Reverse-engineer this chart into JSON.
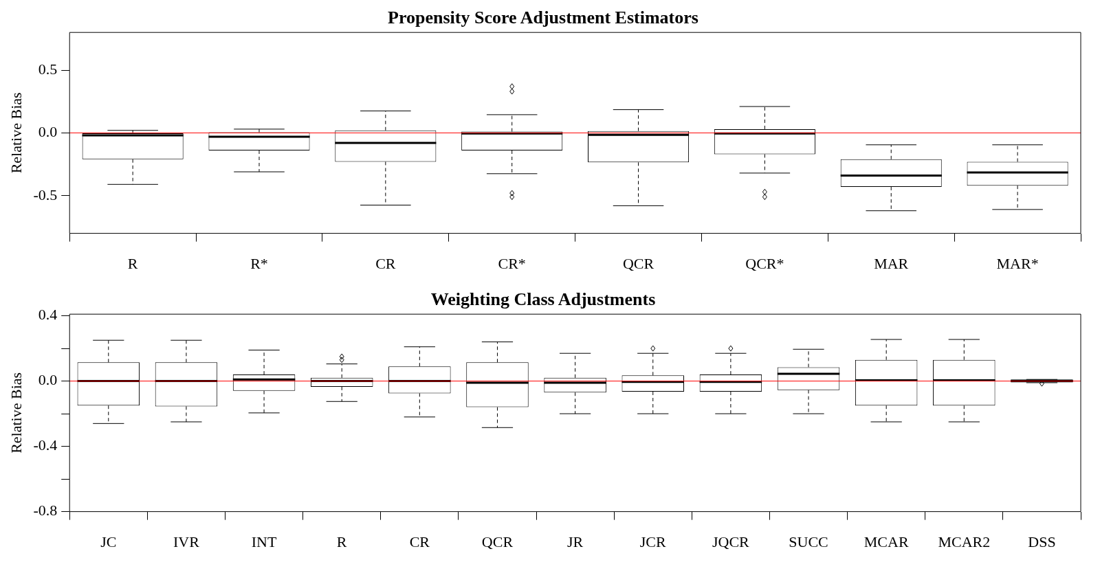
{
  "chart_data": [
    {
      "type": "box",
      "title": "Propensity Score Adjustment Estimators",
      "ylabel": "Relative Bias",
      "categories": [
        "R",
        "R*",
        "CR",
        "CR*",
        "QCR",
        "QCR*",
        "MAR",
        "MAR*"
      ],
      "boxes": [
        {
          "low": -0.41,
          "q1": -0.21,
          "median": -0.02,
          "q3": 0,
          "high": 0.02
        },
        {
          "low": -0.31,
          "q1": -0.14,
          "median": -0.03,
          "q3": 0.005,
          "high": 0.03
        },
        {
          "low": -0.575,
          "q1": -0.23,
          "median": -0.08,
          "q3": 0.02,
          "high": 0.175
        },
        {
          "low": -0.325,
          "q1": -0.14,
          "median": -0.005,
          "q3": 0.01,
          "high": 0.145,
          "outliers": [
            0.37,
            0.33,
            -0.48,
            -0.51
          ]
        },
        {
          "low": -0.58,
          "q1": -0.235,
          "median": -0.015,
          "q3": 0.015,
          "high": 0.185
        },
        {
          "low": -0.32,
          "q1": -0.17,
          "median": -0.005,
          "q3": 0.03,
          "high": 0.21,
          "outliers": [
            -0.47,
            -0.51
          ]
        },
        {
          "low": -0.62,
          "q1": -0.43,
          "median": -0.34,
          "q3": -0.21,
          "high": -0.095
        },
        {
          "low": -0.61,
          "q1": -0.42,
          "median": -0.315,
          "q3": -0.23,
          "high": -0.095
        }
      ],
      "ylim": [
        -0.8,
        0.8
      ],
      "yticks": [
        0.5,
        {
          "value": 0,
          "label": "0.0"
        },
        -0.5
      ],
      "ref_lines": [
        {
          "axis": "y",
          "value": 0,
          "color": "#ff0000"
        }
      ]
    },
    {
      "type": "box",
      "title": "Weighting Class Adjustments",
      "ylabel": "Relative Bias",
      "categories": [
        "JC",
        "IVR",
        "INT",
        "R",
        "CR",
        "QCR",
        "JR",
        "JCR",
        "JQCR",
        "SUCC",
        "MCAR",
        "MCAR2",
        "DSS"
      ],
      "boxes": [
        {
          "low": -0.26,
          "q1": -0.15,
          "median": 0,
          "q3": 0.115,
          "high": 0.25
        },
        {
          "low": -0.25,
          "q1": -0.155,
          "median": 0,
          "q3": 0.115,
          "high": 0.25
        },
        {
          "low": -0.195,
          "q1": -0.06,
          "median": 0.01,
          "q3": 0.04,
          "high": 0.19
        },
        {
          "low": -0.125,
          "q1": -0.035,
          "median": 0,
          "q3": 0.02,
          "high": 0.105,
          "outliers": [
            0.15,
            0.13
          ]
        },
        {
          "low": -0.22,
          "q1": -0.075,
          "median": 0,
          "q3": 0.09,
          "high": 0.21
        },
        {
          "low": -0.285,
          "q1": -0.16,
          "median": -0.01,
          "q3": 0.115,
          "high": 0.24
        },
        {
          "low": -0.2,
          "q1": -0.07,
          "median": -0.01,
          "q3": 0.02,
          "high": 0.17
        },
        {
          "low": -0.2,
          "q1": -0.065,
          "median": -0.005,
          "q3": 0.035,
          "high": 0.17,
          "outliers": [
            0.2
          ]
        },
        {
          "low": -0.2,
          "q1": -0.065,
          "median": -0.005,
          "q3": 0.04,
          "high": 0.17,
          "outliers": [
            0.2
          ]
        },
        {
          "low": -0.2,
          "q1": -0.055,
          "median": 0.045,
          "q3": 0.085,
          "high": 0.195
        },
        {
          "low": -0.25,
          "q1": -0.15,
          "median": 0.005,
          "q3": 0.13,
          "high": 0.255
        },
        {
          "low": -0.25,
          "q1": -0.15,
          "median": 0.005,
          "q3": 0.13,
          "high": 0.255
        },
        {
          "low": -0.01,
          "q1": -0.008,
          "median": 0,
          "q3": 0.01,
          "high": 0.01,
          "outliers": [
            -0.015
          ]
        }
      ],
      "ylim": [
        -0.8,
        0.41
      ],
      "yticks": [
        0.4,
        {
          "value": 0.2,
          "label": null
        },
        {
          "value": 0,
          "label": "0.0"
        },
        {
          "value": -0.2,
          "label": null
        },
        -0.4,
        {
          "value": -0.6,
          "label": null
        },
        -0.8
      ],
      "ref_lines": [
        {
          "axis": "y",
          "value": 0,
          "color": "#ff0000"
        }
      ]
    }
  ]
}
